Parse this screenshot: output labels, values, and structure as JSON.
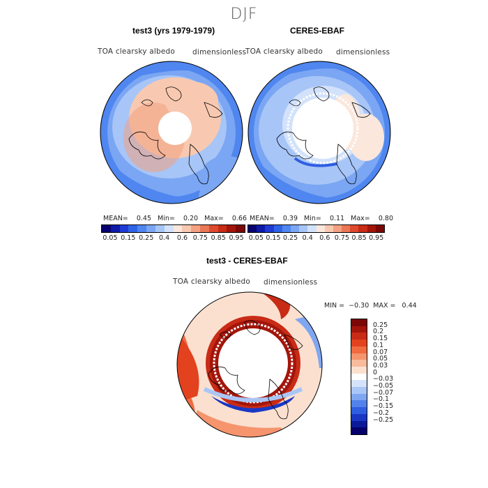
{
  "season": "DJF",
  "panel1": {
    "title": "test3 (yrs 1979-1979)",
    "var_label": "TOA clearsky albedo",
    "units": "dimensionless",
    "stats": "MEAN=    0.45   Min=    0.20   Max=    0.66"
  },
  "panel2": {
    "title": "CERES-EBAF",
    "var_label": "TOA clearsky albedo",
    "units": "dimensionless",
    "stats": "MEAN=    0.39   Min=    0.11   Max=    0.80"
  },
  "panel3": {
    "title": "test3 - CERES-EBAF",
    "var_label": "TOA clearsky albedo",
    "units": "dimensionless",
    "stats": "MIN =  −0.30  MAX =   0.44"
  },
  "abs_colorbar": {
    "ticks": [
      "0.05",
      "0.15",
      "0.25",
      "0.4",
      "0.6",
      "0.75",
      "0.85",
      "0.95"
    ],
    "colors": [
      "#08006e",
      "#0d1aa8",
      "#1f3bd4",
      "#2f63e6",
      "#4f86ef",
      "#7ba6f3",
      "#a7c5f7",
      "#d2e2fb",
      "#fbe7dc",
      "#f8c9b0",
      "#f3a182",
      "#ea7756",
      "#dd4a2d",
      "#c82b16",
      "#a3150a",
      "#7a0806"
    ]
  },
  "diff_colorbar": {
    "ticks": [
      "0.25",
      "0.2",
      "0.15",
      "0.1",
      "0.07",
      "0.05",
      "0.03",
      "0",
      "−0.03",
      "−0.05",
      "−0.07",
      "−0.1",
      "−0.15",
      "−0.2",
      "−0.25"
    ],
    "colors": [
      "#7a0806",
      "#a3150a",
      "#c82b16",
      "#e3421f",
      "#f06b40",
      "#f5946d",
      "#f8bb9c",
      "#fbe0d0",
      "#ffffff",
      "#d4e3fb",
      "#aac6f6",
      "#7fa6f1",
      "#5282ea",
      "#2f5ee0",
      "#1a37c4",
      "#0b1a98",
      "#06006a"
    ]
  }
}
